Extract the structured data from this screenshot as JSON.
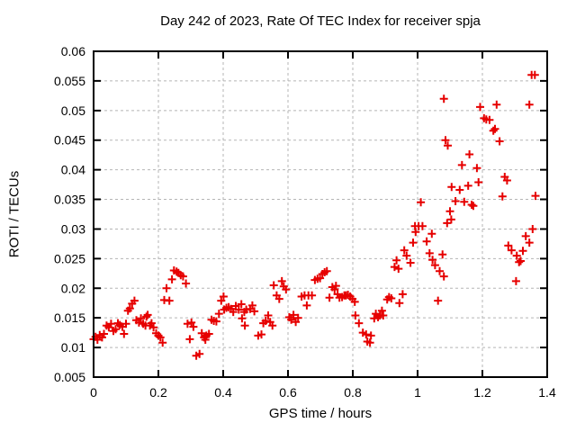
{
  "page": {
    "background": "#ffffff"
  },
  "chart_data": {
    "type": "scatter",
    "title": "Day 242 of 2023, Rate Of TEC Index for receiver spja",
    "xlabel": "GPS time / hours",
    "ylabel": "ROTI / TECUs",
    "xlim": [
      0,
      1.4
    ],
    "ylim": [
      0.005,
      0.06
    ],
    "xticks": [
      0,
      0.2,
      0.4,
      0.6,
      0.8,
      1,
      1.2,
      1.4
    ],
    "xtick_labels": [
      "0",
      "0.2",
      "0.4",
      "0.6",
      "0.8",
      "1",
      "1.2",
      "1.4"
    ],
    "yticks": [
      0.005,
      0.01,
      0.015,
      0.02,
      0.025,
      0.03,
      0.035,
      0.04,
      0.045,
      0.05,
      0.055,
      0.06
    ],
    "ytick_labels": [
      "0.005",
      "0.01",
      "0.015",
      "0.02",
      "0.025",
      "0.03",
      "0.035",
      "0.04",
      "0.045",
      "0.05",
      "0.055",
      "0.06"
    ],
    "grid": true,
    "legend": "none",
    "colors": {
      "marker": "#e60000",
      "grid": "#b5b5b5",
      "border": "#000000"
    },
    "marker": {
      "shape": "plus",
      "size": 9
    },
    "series": [
      {
        "name": "ROTI",
        "points": [
          [
            0.0,
            0.0114
          ],
          [
            0.006,
            0.0118
          ],
          [
            0.012,
            0.0113
          ],
          [
            0.019,
            0.0121
          ],
          [
            0.026,
            0.0117
          ],
          [
            0.032,
            0.0123
          ],
          [
            0.04,
            0.0137
          ],
          [
            0.047,
            0.0134
          ],
          [
            0.054,
            0.014
          ],
          [
            0.061,
            0.0128
          ],
          [
            0.068,
            0.0131
          ],
          [
            0.075,
            0.0141
          ],
          [
            0.081,
            0.0138
          ],
          [
            0.089,
            0.0135
          ],
          [
            0.094,
            0.0123
          ],
          [
            0.1,
            0.014
          ],
          [
            0.106,
            0.0162
          ],
          [
            0.112,
            0.0166
          ],
          [
            0.119,
            0.0174
          ],
          [
            0.126,
            0.0179
          ],
          [
            0.132,
            0.0146
          ],
          [
            0.14,
            0.0142
          ],
          [
            0.146,
            0.0149
          ],
          [
            0.153,
            0.014
          ],
          [
            0.16,
            0.0137
          ],
          [
            0.163,
            0.0152
          ],
          [
            0.167,
            0.0155
          ],
          [
            0.174,
            0.0137
          ],
          [
            0.179,
            0.0141
          ],
          [
            0.185,
            0.0134
          ],
          [
            0.193,
            0.0124
          ],
          [
            0.2,
            0.012
          ],
          [
            0.206,
            0.0117
          ],
          [
            0.213,
            0.0108
          ],
          [
            0.218,
            0.018
          ],
          [
            0.225,
            0.02
          ],
          [
            0.234,
            0.0179
          ],
          [
            0.242,
            0.0215
          ],
          [
            0.248,
            0.023
          ],
          [
            0.256,
            0.0228
          ],
          [
            0.262,
            0.0226
          ],
          [
            0.269,
            0.0222
          ],
          [
            0.276,
            0.022
          ],
          [
            0.285,
            0.0208
          ],
          [
            0.29,
            0.014
          ],
          [
            0.297,
            0.0114
          ],
          [
            0.302,
            0.0142
          ],
          [
            0.308,
            0.0135
          ],
          [
            0.317,
            0.0086
          ],
          [
            0.327,
            0.0089
          ],
          [
            0.334,
            0.0124
          ],
          [
            0.341,
            0.0117
          ],
          [
            0.345,
            0.0113
          ],
          [
            0.348,
            0.012
          ],
          [
            0.356,
            0.0123
          ],
          [
            0.364,
            0.0147
          ],
          [
            0.371,
            0.0145
          ],
          [
            0.379,
            0.0144
          ],
          [
            0.387,
            0.0157
          ],
          [
            0.394,
            0.0179
          ],
          [
            0.401,
            0.0186
          ],
          [
            0.403,
            0.0164
          ],
          [
            0.41,
            0.0167
          ],
          [
            0.417,
            0.0168
          ],
          [
            0.424,
            0.0165
          ],
          [
            0.431,
            0.016
          ],
          [
            0.439,
            0.017
          ],
          [
            0.448,
            0.0164
          ],
          [
            0.456,
            0.0173
          ],
          [
            0.458,
            0.0149
          ],
          [
            0.465,
            0.016
          ],
          [
            0.467,
            0.0137
          ],
          [
            0.471,
            0.0164
          ],
          [
            0.483,
            0.0165
          ],
          [
            0.49,
            0.0171
          ],
          [
            0.496,
            0.0161
          ],
          [
            0.508,
            0.012
          ],
          [
            0.518,
            0.0122
          ],
          [
            0.524,
            0.0141
          ],
          [
            0.531,
            0.0145
          ],
          [
            0.539,
            0.0154
          ],
          [
            0.545,
            0.0143
          ],
          [
            0.552,
            0.0137
          ],
          [
            0.556,
            0.0205
          ],
          [
            0.565,
            0.0188
          ],
          [
            0.573,
            0.0182
          ],
          [
            0.581,
            0.0212
          ],
          [
            0.587,
            0.0203
          ],
          [
            0.594,
            0.0198
          ],
          [
            0.604,
            0.0151
          ],
          [
            0.61,
            0.0147
          ],
          [
            0.617,
            0.0155
          ],
          [
            0.624,
            0.0143
          ],
          [
            0.631,
            0.015
          ],
          [
            0.642,
            0.0186
          ],
          [
            0.651,
            0.0188
          ],
          [
            0.658,
            0.0171
          ],
          [
            0.663,
            0.0188
          ],
          [
            0.674,
            0.0188
          ],
          [
            0.683,
            0.0214
          ],
          [
            0.691,
            0.0216
          ],
          [
            0.699,
            0.0217
          ],
          [
            0.706,
            0.0224
          ],
          [
            0.713,
            0.0227
          ],
          [
            0.72,
            0.0229
          ],
          [
            0.728,
            0.0184
          ],
          [
            0.737,
            0.0202
          ],
          [
            0.744,
            0.0198
          ],
          [
            0.748,
            0.0204
          ],
          [
            0.753,
            0.019
          ],
          [
            0.759,
            0.0184
          ],
          [
            0.767,
            0.0185
          ],
          [
            0.774,
            0.0188
          ],
          [
            0.779,
            0.0188
          ],
          [
            0.785,
            0.0189
          ],
          [
            0.792,
            0.0186
          ],
          [
            0.799,
            0.0182
          ],
          [
            0.806,
            0.0177
          ],
          [
            0.808,
            0.0154
          ],
          [
            0.819,
            0.0141
          ],
          [
            0.831,
            0.0125
          ],
          [
            0.841,
            0.0122
          ],
          [
            0.845,
            0.011
          ],
          [
            0.853,
            0.0108
          ],
          [
            0.856,
            0.012
          ],
          [
            0.866,
            0.0149
          ],
          [
            0.871,
            0.0157
          ],
          [
            0.878,
            0.0151
          ],
          [
            0.884,
            0.0154
          ],
          [
            0.89,
            0.0162
          ],
          [
            0.894,
            0.0154
          ],
          [
            0.906,
            0.0181
          ],
          [
            0.912,
            0.0185
          ],
          [
            0.919,
            0.0183
          ],
          [
            0.929,
            0.0236
          ],
          [
            0.935,
            0.0247
          ],
          [
            0.941,
            0.0233
          ],
          [
            0.944,
            0.0175
          ],
          [
            0.954,
            0.019
          ],
          [
            0.959,
            0.0264
          ],
          [
            0.966,
            0.0255
          ],
          [
            0.978,
            0.0243
          ],
          [
            0.986,
            0.0277
          ],
          [
            0.992,
            0.0305
          ],
          [
            0.994,
            0.0295
          ],
          [
            1.003,
            0.0305
          ],
          [
            1.01,
            0.0345
          ],
          [
            1.015,
            0.0305
          ],
          [
            1.028,
            0.0279
          ],
          [
            1.037,
            0.0259
          ],
          [
            1.044,
            0.0292
          ],
          [
            1.046,
            0.0248
          ],
          [
            1.054,
            0.0239
          ],
          [
            1.063,
            0.0179
          ],
          [
            1.068,
            0.0229
          ],
          [
            1.077,
            0.0257
          ],
          [
            1.081,
            0.022
          ],
          [
            1.081,
            0.052
          ],
          [
            1.086,
            0.045
          ],
          [
            1.091,
            0.031
          ],
          [
            1.093,
            0.0441
          ],
          [
            1.1,
            0.033
          ],
          [
            1.104,
            0.0316
          ],
          [
            1.105,
            0.0371
          ],
          [
            1.117,
            0.0347
          ],
          [
            1.13,
            0.0366
          ],
          [
            1.137,
            0.0408
          ],
          [
            1.144,
            0.0346
          ],
          [
            1.156,
            0.0373
          ],
          [
            1.16,
            0.0426
          ],
          [
            1.167,
            0.0341
          ],
          [
            1.172,
            0.0339
          ],
          [
            1.183,
            0.0403
          ],
          [
            1.188,
            0.0379
          ],
          [
            1.193,
            0.0506
          ],
          [
            1.205,
            0.0487
          ],
          [
            1.212,
            0.0485
          ],
          [
            1.222,
            0.0484
          ],
          [
            1.234,
            0.0466
          ],
          [
            1.239,
            0.0469
          ],
          [
            1.244,
            0.051
          ],
          [
            1.253,
            0.0448
          ],
          [
            1.262,
            0.0355
          ],
          [
            1.269,
            0.0388
          ],
          [
            1.276,
            0.0382
          ],
          [
            1.28,
            0.0272
          ],
          [
            1.29,
            0.0264
          ],
          [
            1.304,
            0.0212
          ],
          [
            1.306,
            0.0255
          ],
          [
            1.313,
            0.0244
          ],
          [
            1.318,
            0.0246
          ],
          [
            1.325,
            0.0263
          ],
          [
            1.334,
            0.0288
          ],
          [
            1.345,
            0.0277
          ],
          [
            1.345,
            0.051
          ],
          [
            1.352,
            0.056
          ],
          [
            1.355,
            0.03
          ],
          [
            1.362,
            0.056
          ],
          [
            1.364,
            0.0356
          ]
        ]
      }
    ]
  }
}
